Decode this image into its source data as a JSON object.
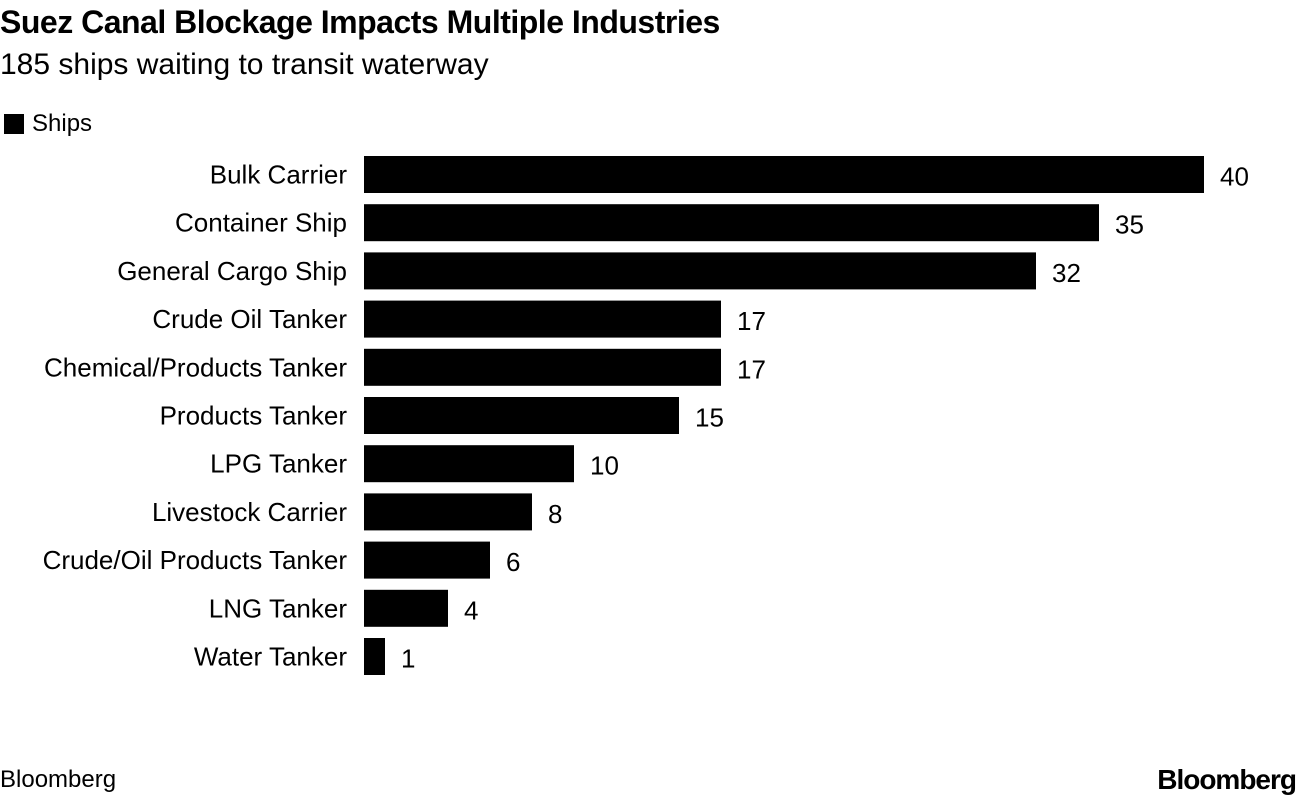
{
  "header": {
    "title": "Suez Canal Blockage Impacts Multiple Industries",
    "subtitle": "185 ships waiting to transit waterway"
  },
  "footer": {
    "source": "Bloomberg",
    "logo": "Bloomberg"
  },
  "chart_data": {
    "type": "bar",
    "orientation": "horizontal",
    "title": "Suez Canal Blockage Impacts Multiple Industries",
    "subtitle": "185 ships waiting to transit waterway",
    "legend_placement": "top-left",
    "grid": false,
    "categories": [
      "Bulk Carrier",
      "Container Ship",
      "General Cargo Ship",
      "Crude Oil Tanker",
      "Chemical/Products Tanker",
      "Products Tanker",
      "LPG Tanker",
      "Livestock Carrier",
      "Crude/Oil Products Tanker",
      "LNG Tanker",
      "Water Tanker"
    ],
    "series": [
      {
        "name": "Ships",
        "color": "#000000",
        "values": [
          40,
          35,
          32,
          17,
          17,
          15,
          10,
          8,
          6,
          4,
          1
        ]
      }
    ],
    "xlim": [
      0,
      40
    ]
  }
}
